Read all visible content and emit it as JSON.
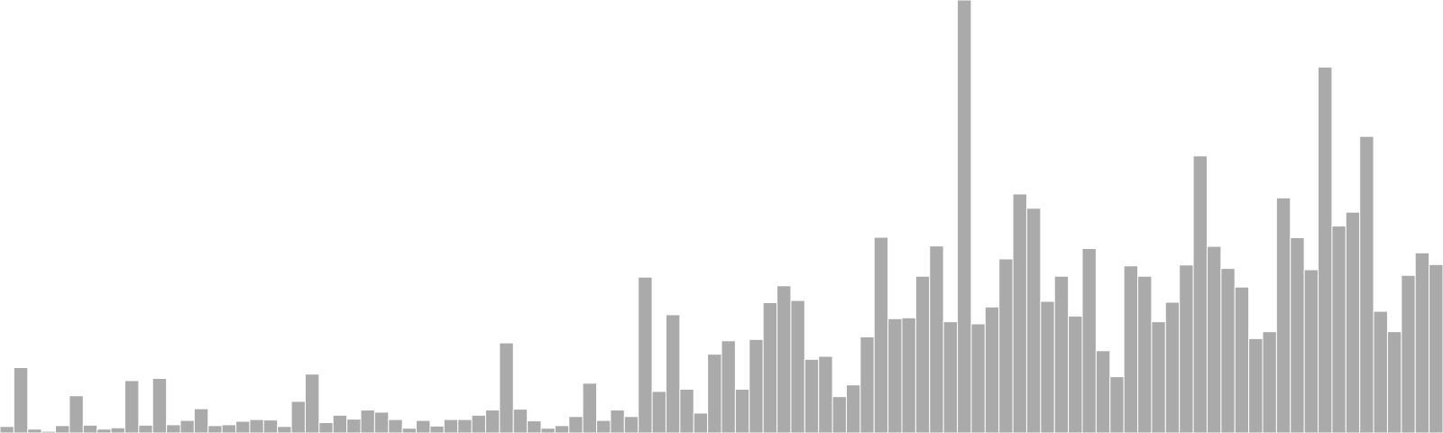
{
  "chart_data": {
    "type": "bar",
    "title": "",
    "xlabel": "",
    "ylabel": "",
    "ylim": [
      0,
      100
    ],
    "grid": false,
    "legend": "none",
    "bar_color": "#aaaaaa",
    "background": "#ffffff",
    "values": [
      1.5,
      15.1,
      0.9,
      0.4,
      1.7,
      8.6,
      1.8,
      0.9,
      1.2,
      12.1,
      1.8,
      12.6,
      1.9,
      2.9,
      5.6,
      1.7,
      1.9,
      2.7,
      3.1,
      3.0,
      1.5,
      7.3,
      13.6,
      2.4,
      4.1,
      3.2,
      5.3,
      4.8,
      3.1,
      1.1,
      2.9,
      1.6,
      3.1,
      3.1,
      4.1,
      5.3,
      20.8,
      5.5,
      2.8,
      1.1,
      1.7,
      3.8,
      11.5,
      2.9,
      5.3,
      3.8,
      36.0,
      9.6,
      27.3,
      10.1,
      4.6,
      18.2,
      21.3,
      10.1,
      21.6,
      30.1,
      34.0,
      30.6,
      17.0,
      17.7,
      8.4,
      11.1,
      22.2,
      45.2,
      26.4,
      26.6,
      36.2,
      43.2,
      25.7,
      100.0,
      25.2,
      29.1,
      40.2,
      55.2,
      51.9,
      30.4,
      36.2,
      27.0,
      42.6,
      19.0,
      13.0,
      38.6,
      36.2,
      25.7,
      30.2,
      38.8,
      64.0,
      43.1,
      38.0,
      33.7,
      21.8,
      23.4,
      54.3,
      45.1,
      37.7,
      84.5,
      47.8,
      51.0,
      68.5,
      28.1,
      23.4,
      36.4,
      41.6,
      38.9
    ]
  }
}
